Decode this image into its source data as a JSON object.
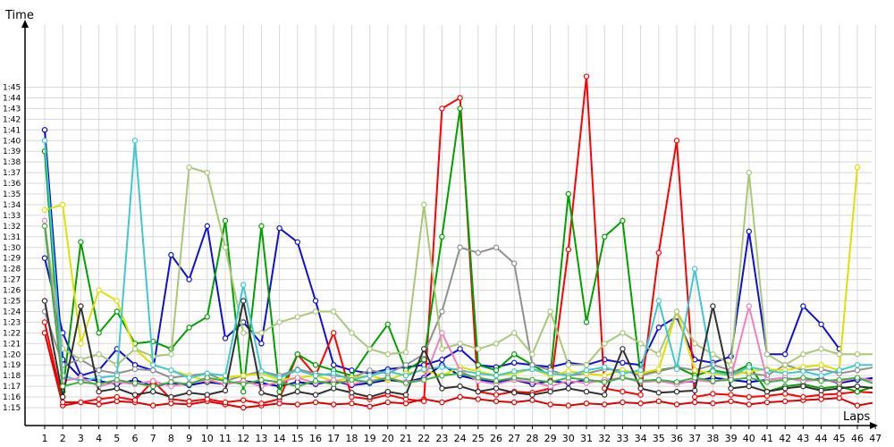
{
  "chart_data": {
    "type": "line",
    "ylabel": "Time",
    "xlabel": "Laps",
    "x": [
      1,
      2,
      3,
      4,
      5,
      6,
      7,
      8,
      9,
      10,
      11,
      12,
      13,
      14,
      15,
      16,
      17,
      18,
      19,
      20,
      21,
      22,
      23,
      24,
      25,
      26,
      27,
      28,
      29,
      30,
      31,
      32,
      33,
      34,
      35,
      36,
      37,
      38,
      39,
      40,
      41,
      42,
      43,
      44,
      45,
      46,
      47
    ],
    "y_ticks": [
      "1:15",
      "1:16",
      "1:17",
      "1:18",
      "1:19",
      "1:20",
      "1:21",
      "1:22",
      "1:23",
      "1:24",
      "1:25",
      "1:26",
      "1:27",
      "1:28",
      "1:29",
      "1:30",
      "1:31",
      "1:32",
      "1:33",
      "1:34",
      "1:35",
      "1:36",
      "1:37",
      "1:38",
      "1:39",
      "1:40",
      "1:41",
      "1:42",
      "1:43",
      "1:44",
      "1:45"
    ],
    "y_tick_seconds": [
      75,
      76,
      77,
      78,
      79,
      80,
      81,
      82,
      83,
      84,
      85,
      86,
      87,
      88,
      89,
      90,
      91,
      92,
      93,
      94,
      95,
      96,
      97,
      98,
      99,
      100,
      101,
      102,
      103,
      104,
      105
    ],
    "ylim_seconds": [
      74,
      107
    ],
    "grid": true,
    "series": [
      {
        "color": "#e00000",
        "values": [
          82.0,
          75.2,
          75.5,
          75.3,
          75.6,
          75.5,
          75.2,
          75.4,
          75.3,
          75.6,
          75.3,
          75.0,
          75.2,
          75.4,
          75.3,
          75.5,
          75.3,
          75.4,
          75.1,
          75.5,
          75.4,
          75.8,
          75.5,
          76.0,
          75.8,
          75.6,
          75.5,
          75.7,
          75.3,
          75.2,
          75.4,
          75.3,
          75.5,
          75.4,
          75.6,
          75.3,
          75.5,
          75.4,
          75.6,
          75.3,
          75.5,
          75.6,
          75.7,
          75.8,
          75.9,
          75.2,
          75.5
        ]
      },
      {
        "color": "#0000c8",
        "values": [
          101.0,
          79.5,
          77.8,
          77.5,
          77.2,
          77.6,
          77.0,
          77.3,
          77.1,
          77.4,
          77.2,
          77.5,
          77.3,
          77.0,
          77.4,
          77.2,
          77.5,
          77.1,
          77.3,
          77.6,
          77.4,
          77.8,
          79.0,
          78.0,
          77.6,
          77.4,
          77.6,
          77.2,
          77.5,
          77.3,
          77.6,
          77.4,
          77.8,
          77.5,
          77.6,
          77.3,
          77.5,
          77.8,
          77.6,
          77.4,
          77.6,
          77.8,
          77.5,
          77.7,
          77.3,
          77.6,
          77.8
        ]
      },
      {
        "color": "#1010d0",
        "values": [
          89.0,
          82.0,
          78.0,
          78.5,
          80.5,
          79.0,
          78.5,
          89.3,
          87.0,
          92.0,
          81.5,
          83.0,
          81.0,
          91.8,
          90.5,
          85.0,
          79.0,
          78.5,
          78.2,
          78.6,
          78.8,
          79.0,
          79.5,
          80.5,
          79.0,
          78.8,
          79.2,
          79.0,
          78.8,
          79.2,
          79.0,
          79.5,
          79.2,
          79.0,
          82.5,
          83.5,
          79.5,
          79.2,
          79.8,
          91.5,
          80.0,
          80.0,
          84.5,
          82.8,
          80.5,
          null,
          null
        ]
      },
      {
        "color": "#ff0000",
        "values": [
          83.0,
          75.5,
          75.5,
          75.8,
          76.0,
          75.7,
          77.5,
          75.8,
          75.6,
          75.8,
          75.5,
          75.7,
          75.4,
          75.8,
          80.0,
          78.0,
          82.0,
          76.0,
          75.8,
          76.2,
          75.8,
          75.6,
          103.0,
          104.0,
          76.5,
          76.2,
          76.5,
          76.4,
          76.8,
          89.8,
          106.0,
          76.8,
          76.5,
          76.2,
          89.5,
          100.0,
          76.0,
          76.3,
          76.2,
          76.0,
          76.1,
          76.3,
          76.0,
          76.2,
          76.3,
          76.5,
          76.4
        ]
      },
      {
        "color": "#00a000",
        "values": [
          99.0,
          76.5,
          90.5,
          82.0,
          84.0,
          81.0,
          81.2,
          80.5,
          82.5,
          83.5,
          92.5,
          76.5,
          92.0,
          76.5,
          80.0,
          79.0,
          78.5,
          78.0,
          80.5,
          82.8,
          78.5,
          79.5,
          91.0,
          103.0,
          79.0,
          78.5,
          80.0,
          79.0,
          78.0,
          95.0,
          83.0,
          91.0,
          92.5,
          78.0,
          78.5,
          78.8,
          78.0,
          78.5,
          78.2,
          79.0,
          76.5,
          77.0,
          77.2,
          76.8,
          77.0,
          76.5,
          77.0
        ]
      },
      {
        "color": "#909090",
        "values": [
          84.0,
          79.0,
          79.5,
          78.5,
          78.2,
          78.6,
          78.5,
          77.8,
          78.0,
          78.2,
          77.5,
          78.0,
          78.4,
          78.0,
          78.6,
          78.2,
          78.0,
          77.8,
          78.5,
          78.2,
          79.0,
          80.0,
          84.0,
          90.0,
          89.5,
          90.0,
          88.5,
          79.0,
          78.5,
          78.0,
          78.2,
          78.6,
          78.5,
          78.0,
          78.4,
          78.8,
          78.5,
          79.0,
          78.5,
          78.2,
          78.0,
          79.0,
          78.5,
          78.6,
          78.2,
          78.5,
          78.8
        ]
      },
      {
        "color": "#e0e000",
        "values": [
          93.5,
          94.0,
          81.0,
          86.0,
          85.0,
          80.5,
          79.0,
          78.5,
          78.0,
          77.5,
          77.8,
          78.0,
          78.2,
          77.6,
          77.8,
          78.0,
          77.5,
          77.8,
          78.0,
          77.6,
          78.2,
          78.5,
          78.0,
          78.8,
          78.4,
          78.0,
          78.2,
          78.6,
          78.0,
          78.4,
          78.2,
          78.0,
          78.5,
          78.2,
          78.6,
          84.0,
          78.5,
          78.2,
          78.0,
          78.4,
          78.6,
          78.5,
          78.8,
          79.0,
          78.5,
          97.5,
          null
        ]
      },
      {
        "color": "#a8c878",
        "values": [
          92.0,
          80.5,
          79.5,
          80.0,
          79.0,
          80.5,
          79.8,
          80.0,
          97.5,
          97.0,
          90.0,
          82.0,
          82.0,
          83.0,
          83.5,
          84.0,
          84.0,
          82.0,
          80.5,
          80.0,
          80.2,
          94.0,
          80.5,
          81.0,
          80.5,
          81.0,
          82.0,
          80.0,
          84.0,
          79.0,
          79.0,
          81.0,
          82.0,
          81.0,
          80.0,
          84.0,
          81.0,
          80.0,
          79.0,
          97.0,
          80.0,
          79.0,
          80.0,
          80.5,
          80.0,
          80.0,
          80.0
        ]
      },
      {
        "color": "#40c8d0",
        "values": [
          100.0,
          78.0,
          77.5,
          77.8,
          78.0,
          100.0,
          79.0,
          78.5,
          77.8,
          78.2,
          78.0,
          86.5,
          78.4,
          77.8,
          78.5,
          78.0,
          78.2,
          77.6,
          78.0,
          78.4,
          78.0,
          78.6,
          78.8,
          78.5,
          78.2,
          78.0,
          78.4,
          78.6,
          78.2,
          78.0,
          78.5,
          78.8,
          78.2,
          78.5,
          85.0,
          78.6,
          88.0,
          78.4,
          78.0,
          78.8,
          78.5,
          78.2,
          78.4,
          78.0,
          78.5,
          79.0,
          79.0
        ]
      },
      {
        "color": "#f080c0",
        "values": [
          92.5,
          77.5,
          77.8,
          77.0,
          77.4,
          77.2,
          77.5,
          77.0,
          77.3,
          77.6,
          77.2,
          77.5,
          77.0,
          77.4,
          77.8,
          77.3,
          77.6,
          77.2,
          77.5,
          77.8,
          77.4,
          77.6,
          82.0,
          78.5,
          77.5,
          77.2,
          77.6,
          77.4,
          77.0,
          77.5,
          77.3,
          77.6,
          77.8,
          77.4,
          77.5,
          77.2,
          77.6,
          77.4,
          77.8,
          84.5,
          77.6,
          77.8,
          77.5,
          77.6,
          77.4,
          77.8,
          77.5
        ]
      },
      {
        "color": "#303030",
        "values": [
          85.0,
          76.0,
          84.5,
          76.5,
          76.8,
          76.2,
          76.5,
          76.0,
          76.4,
          76.2,
          76.6,
          85.0,
          76.4,
          76.0,
          76.5,
          76.2,
          76.8,
          76.4,
          76.0,
          76.5,
          76.2,
          80.5,
          76.8,
          77.0,
          76.5,
          76.8,
          76.4,
          76.2,
          76.5,
          76.8,
          76.5,
          76.2,
          80.5,
          76.8,
          76.4,
          76.5,
          76.6,
          84.5,
          76.8,
          77.0,
          76.5,
          76.8,
          77.0,
          76.6,
          76.8,
          77.0,
          76.8
        ]
      },
      {
        "color": "#40b040",
        "values": [
          92.0,
          77.0,
          77.4,
          77.2,
          77.6,
          77.3,
          77.0,
          77.4,
          77.2,
          77.8,
          77.5,
          77.2,
          77.6,
          77.4,
          77.0,
          77.5,
          77.2,
          77.6,
          77.4,
          77.8,
          77.3,
          77.6,
          78.0,
          78.2,
          77.8,
          77.5,
          77.8,
          77.6,
          77.4,
          77.8,
          77.6,
          77.4,
          77.8,
          77.5,
          77.6,
          77.4,
          77.8,
          77.5,
          77.6,
          77.8,
          77.4,
          77.6,
          77.8,
          77.5,
          77.6,
          77.8,
          77.2
        ]
      }
    ]
  }
}
